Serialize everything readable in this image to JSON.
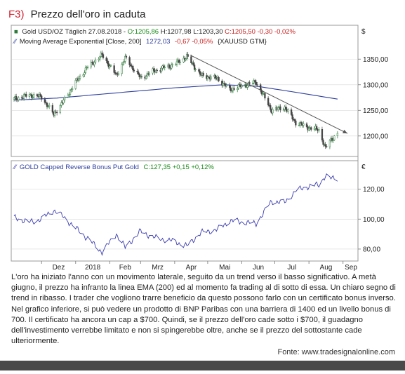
{
  "title": {
    "prefix": "F3)",
    "text": "Prezzo dell'oro in caduta"
  },
  "colors": {
    "prefix": "#d1202f",
    "title": "#222222",
    "candle_up": "#2d7a3a",
    "candle_down": "#444444",
    "ema": "#2e3f9e",
    "product": "#3b3db0",
    "trend": "#555555",
    "green": "#1a8a1a",
    "red": "#c81e1e",
    "label_blue": "#2e3f9e",
    "grid": "#d9d9d9"
  },
  "legend_top": {
    "marker": "■",
    "main": "Gold USD/OZ Täglich  27.08.2018 - ",
    "o_label": "O:",
    "o_value": "1205,86",
    "h_label": " H:",
    "h_value": "1207,98",
    "l_label": " L:",
    "l_value": "1203,30",
    "c_label": " C:",
    "c_value": "1205,50",
    "chg": " -0,30 -0,02%",
    "currency": "$"
  },
  "legend_ema": {
    "marker": "∕∕",
    "text": "Moving Average Exponential [Close, 200]",
    "value": "1272,03",
    "chg": "-0,67 -0,05%",
    "symbol": "{XAUUSD GTM}"
  },
  "legend_bottom": {
    "marker": "∕∕",
    "text": "GOLD Capped Reverse Bonus Put Gold",
    "value": "C:127,35 +0,15 +0,12%",
    "currency": "€"
  },
  "chart_data": [
    {
      "type": "candlestick",
      "title": "Gold USD/OZ Täglich",
      "ylim": [
        1160,
        1375
      ],
      "y_ticks": [
        "1350,00",
        "1300,00",
        "1250,00",
        "1200,00"
      ],
      "y_tick_values": [
        1350,
        1300,
        1250,
        1200
      ],
      "x_ticks": [
        "Dez",
        "2018",
        "Feb",
        "Mrz",
        "Apr",
        "Mai",
        "Jun",
        "Jul",
        "Aug",
        "Sep"
      ],
      "x_tick_dates": [
        "2017-12-01",
        "2018-01-01",
        "2018-02-01",
        "2018-03-01",
        "2018-04-01",
        "2018-05-01",
        "2018-06-01",
        "2018-07-01",
        "2018-08-01",
        "2018-09-01"
      ],
      "x_range": [
        "2017-11-06",
        "2018-09-05"
      ],
      "close_anchors": [
        {
          "date": "2017-11-06",
          "value": 1272
        },
        {
          "date": "2017-11-20",
          "value": 1280
        },
        {
          "date": "2017-12-01",
          "value": 1276
        },
        {
          "date": "2017-12-12",
          "value": 1242
        },
        {
          "date": "2017-12-20",
          "value": 1265
        },
        {
          "date": "2018-01-01",
          "value": 1305
        },
        {
          "date": "2018-01-12",
          "value": 1335
        },
        {
          "date": "2018-01-25",
          "value": 1358
        },
        {
          "date": "2018-02-07",
          "value": 1318
        },
        {
          "date": "2018-02-15",
          "value": 1352
        },
        {
          "date": "2018-03-01",
          "value": 1313
        },
        {
          "date": "2018-03-12",
          "value": 1326
        },
        {
          "date": "2018-04-01",
          "value": 1340
        },
        {
          "date": "2018-04-12",
          "value": 1355
        },
        {
          "date": "2018-04-25",
          "value": 1318
        },
        {
          "date": "2018-05-10",
          "value": 1312
        },
        {
          "date": "2018-05-21",
          "value": 1290
        },
        {
          "date": "2018-06-01",
          "value": 1298
        },
        {
          "date": "2018-06-14",
          "value": 1305
        },
        {
          "date": "2018-06-28",
          "value": 1250
        },
        {
          "date": "2018-07-10",
          "value": 1256
        },
        {
          "date": "2018-07-20",
          "value": 1226
        },
        {
          "date": "2018-08-01",
          "value": 1216
        },
        {
          "date": "2018-08-10",
          "value": 1212
        },
        {
          "date": "2018-08-16",
          "value": 1176
        },
        {
          "date": "2018-08-20",
          "value": 1190
        },
        {
          "date": "2018-08-27",
          "value": 1205.5
        }
      ],
      "series": [
        {
          "name": "Moving Average Exponential [Close, 200]",
          "points": [
            {
              "date": "2017-11-06",
              "value": 1270
            },
            {
              "date": "2017-12-15",
              "value": 1274
            },
            {
              "date": "2018-02-01",
              "value": 1283
            },
            {
              "date": "2018-04-01",
              "value": 1294
            },
            {
              "date": "2018-05-15",
              "value": 1300
            },
            {
              "date": "2018-06-15",
              "value": 1297
            },
            {
              "date": "2018-07-15",
              "value": 1287
            },
            {
              "date": "2018-08-27",
              "value": 1272
            }
          ]
        },
        {
          "name": "trendline",
          "points": [
            {
              "date": "2018-04-15",
              "value": 1358
            },
            {
              "date": "2018-09-05",
              "value": 1205
            }
          ]
        }
      ]
    },
    {
      "type": "line",
      "title": "GOLD Capped Reverse Bonus Put Gold",
      "ylim": [
        72,
        132
      ],
      "y_ticks": [
        "120,00",
        "100,00",
        "80,00"
      ],
      "y_tick_values": [
        120,
        100,
        80
      ],
      "series": [
        {
          "name": "GOLD Capped Reverse Bonus Put Gold",
          "points": [
            {
              "date": "2017-11-06",
              "value": 101
            },
            {
              "date": "2017-11-20",
              "value": 98
            },
            {
              "date": "2017-12-01",
              "value": 100
            },
            {
              "date": "2017-12-12",
              "value": 106
            },
            {
              "date": "2017-12-20",
              "value": 102
            },
            {
              "date": "2018-01-01",
              "value": 94
            },
            {
              "date": "2018-01-12",
              "value": 87
            },
            {
              "date": "2018-01-25",
              "value": 78
            },
            {
              "date": "2018-02-07",
              "value": 90
            },
            {
              "date": "2018-02-15",
              "value": 81
            },
            {
              "date": "2018-03-01",
              "value": 92
            },
            {
              "date": "2018-03-12",
              "value": 88
            },
            {
              "date": "2018-04-01",
              "value": 85
            },
            {
              "date": "2018-04-12",
              "value": 82
            },
            {
              "date": "2018-04-25",
              "value": 91
            },
            {
              "date": "2018-05-10",
              "value": 93
            },
            {
              "date": "2018-05-21",
              "value": 99
            },
            {
              "date": "2018-06-01",
              "value": 98
            },
            {
              "date": "2018-06-14",
              "value": 97
            },
            {
              "date": "2018-06-28",
              "value": 112
            },
            {
              "date": "2018-07-10",
              "value": 111
            },
            {
              "date": "2018-07-20",
              "value": 119
            },
            {
              "date": "2018-08-01",
              "value": 122
            },
            {
              "date": "2018-08-10",
              "value": 123
            },
            {
              "date": "2018-08-16",
              "value": 129
            },
            {
              "date": "2018-08-20",
              "value": 127.2
            },
            {
              "date": "2018-08-27",
              "value": 127.35
            }
          ]
        }
      ]
    }
  ],
  "caption": "L'oro ha iniziato l'anno con un movimento laterale, seguito da un trend verso il basso significativo. A metà giugno, il prezzo ha infranto la linea EMA (200) ed al momento fa trading al di sotto di essa. Un chiaro segno di trend in ribasso. I trader che vogliono trarre beneficio da questo possono farlo con un certificato bonus inverso. Nel grafico inferiore, si può vedere un prodotto di BNP Paribas con una barriera di 1400 ed un livello bonus di 700. Il certificato ha ancora un cap a $700. Quindi, se il prezzo dell'oro cade sotto i $700, il guadagno dell'investimento verrebbe limitato e non si spingerebbe oltre, anche se il prezzo del sottostante cade ulteriormente.",
  "source": "Fonte: www.tradesignalonline.com"
}
